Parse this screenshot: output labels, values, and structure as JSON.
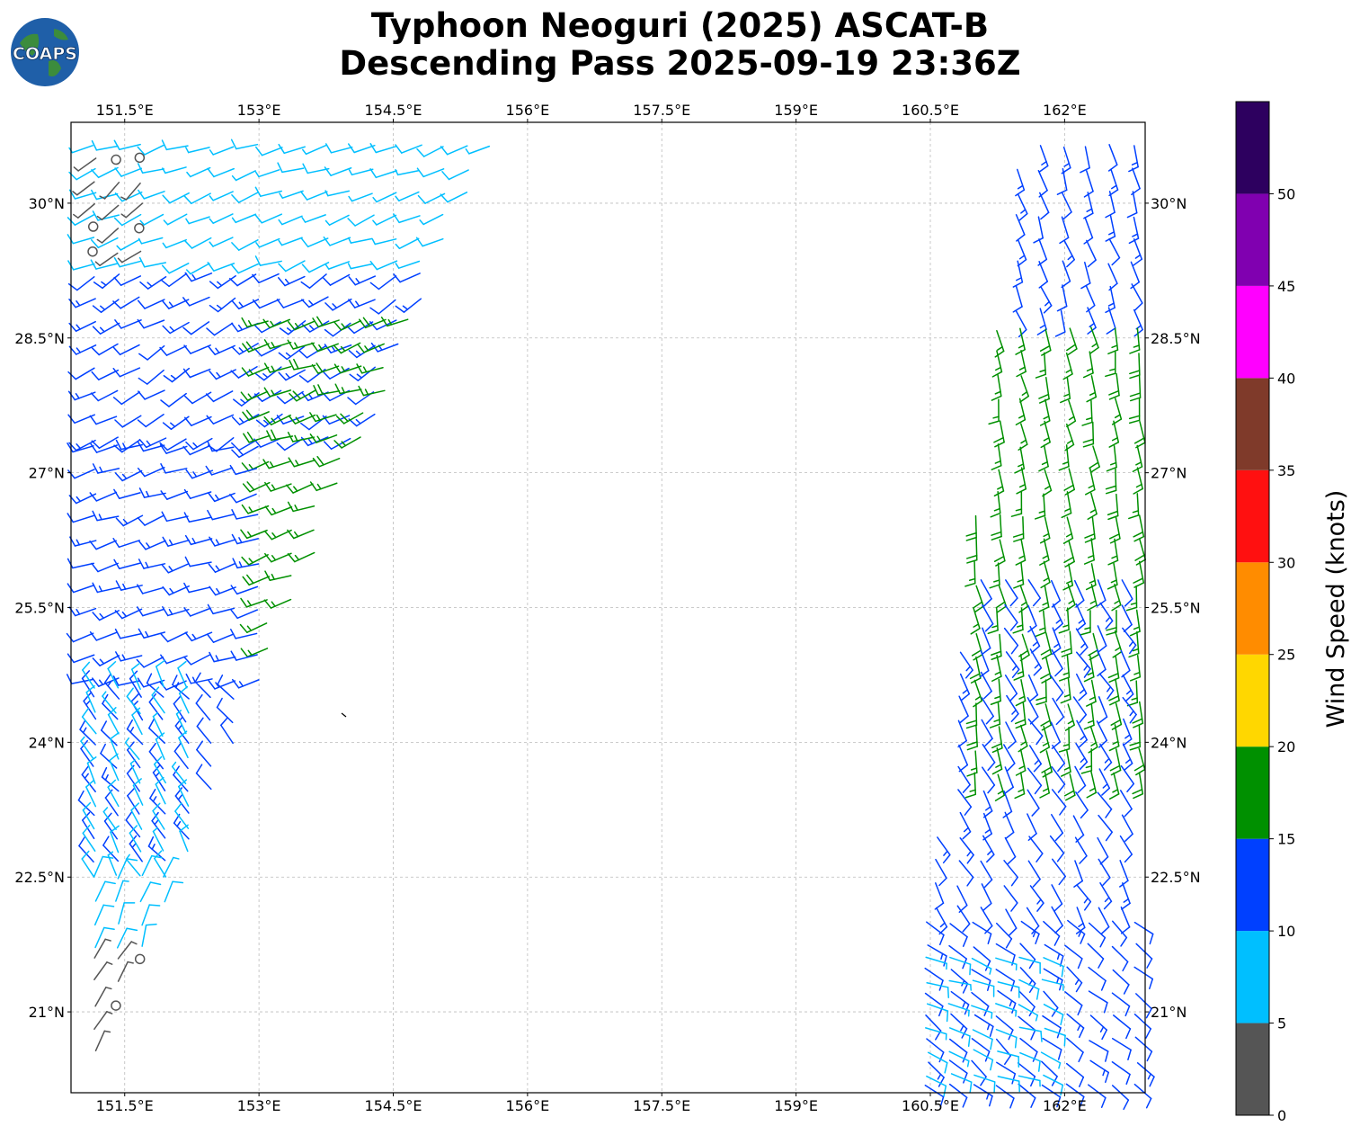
{
  "title_line1": "Typhoon Neoguri (2025) ASCAT-B",
  "title_line2": "Descending Pass 2025-09-19 23:36Z",
  "logo_text": "COAPS",
  "lon_labels": [
    "151.5°E",
    "153°E",
    "154.5°E",
    "156°E",
    "157.5°E",
    "159°E",
    "160.5°E",
    "162°E"
  ],
  "lat_labels": [
    "30°N",
    "28.5°N",
    "27°N",
    "25.5°N",
    "24°N",
    "22.5°N",
    "21°N"
  ],
  "lon_values": [
    151.5,
    153,
    154.5,
    156,
    157.5,
    159,
    160.5,
    162
  ],
  "lat_values": [
    30,
    28.5,
    27,
    25.5,
    24,
    22.5,
    21
  ],
  "extent": {
    "lon_min": 150.9,
    "lon_max": 162.9,
    "lat_min": 20.1,
    "lat_max": 30.9
  },
  "colorbar": {
    "title": "Wind Speed (knots)",
    "tick_labels": [
      "0",
      "5",
      "10",
      "15",
      "20",
      "25",
      "30",
      "35",
      "40",
      "45",
      "50"
    ],
    "bins": [
      {
        "min": 0,
        "max": 5,
        "color": "#555555"
      },
      {
        "min": 5,
        "max": 10,
        "color": "#00bfff"
      },
      {
        "min": 10,
        "max": 15,
        "color": "#0040ff"
      },
      {
        "min": 15,
        "max": 20,
        "color": "#009000"
      },
      {
        "min": 20,
        "max": 25,
        "color": "#ffd700"
      },
      {
        "min": 25,
        "max": 30,
        "color": "#ff8c00"
      },
      {
        "min": 30,
        "max": 35,
        "color": "#ff1010"
      },
      {
        "min": 35,
        "max": 40,
        "color": "#7f3a2a"
      },
      {
        "min": 40,
        "max": 45,
        "color": "#ff00ff"
      },
      {
        "min": 45,
        "max": 50,
        "color": "#8000b0"
      },
      {
        "min": 50,
        "max": 55,
        "color": "#2d005f"
      }
    ]
  },
  "swaths": [
    {
      "name": "west",
      "zones": [
        {
          "lat_from": 29.2,
          "lat_to": 30.9,
          "lon_from": 150.9,
          "lon_to": 155.8,
          "speed": 8,
          "dir": 250
        },
        {
          "lat_from": 29.4,
          "lat_to": 30.5,
          "lon_from": 150.9,
          "lon_to": 151.9,
          "speed": 3,
          "dir": 230
        },
        {
          "lat_from": 27.3,
          "lat_to": 29.2,
          "lon_from": 150.9,
          "lon_to": 155.5,
          "speed": 12,
          "dir": 240
        },
        {
          "lat_from": 24.8,
          "lat_to": 28.7,
          "lon_from": 153.1,
          "lon_to": 154.7,
          "speed": 17,
          "dir": 250
        },
        {
          "lat_from": 24.5,
          "lat_to": 27.3,
          "lon_from": 150.9,
          "lon_to": 153.2,
          "speed": 12,
          "dir": 250
        },
        {
          "lat_from": 22.5,
          "lat_to": 24.5,
          "lon_from": 150.9,
          "lon_to": 153.0,
          "speed": 12,
          "dir": 320
        },
        {
          "lat_from": 22.5,
          "lat_to": 24.6,
          "lon_from": 150.9,
          "lon_to": 152.2,
          "speed": 8,
          "dir": 330
        },
        {
          "lat_from": 21.5,
          "lat_to": 22.5,
          "lon_from": 150.9,
          "lon_to": 152.5,
          "speed": 8,
          "dir": 20
        },
        {
          "lat_from": 20.1,
          "lat_to": 21.6,
          "lon_from": 150.9,
          "lon_to": 152.3,
          "speed": 3,
          "dir": 30
        }
      ]
    },
    {
      "name": "east",
      "zones": [
        {
          "lat_from": 28.6,
          "lat_to": 30.9,
          "lon_from": 161.2,
          "lon_to": 162.9,
          "speed": 12,
          "dir": 160
        },
        {
          "lat_from": 23.6,
          "lat_to": 28.6,
          "lon_from": 161.0,
          "lon_to": 162.9,
          "speed": 17,
          "dir": 170
        },
        {
          "lat_from": 22.0,
          "lat_to": 25.8,
          "lon_from": 160.3,
          "lon_to": 162.9,
          "speed": 12,
          "dir": 150
        },
        {
          "lat_from": 20.1,
          "lat_to": 22.0,
          "lon_from": 160.2,
          "lon_to": 162.9,
          "speed": 12,
          "dir": 130
        },
        {
          "lat_from": 20.1,
          "lat_to": 21.6,
          "lon_from": 160.2,
          "lon_to": 161.8,
          "speed": 8,
          "dir": 110
        }
      ]
    }
  ]
}
